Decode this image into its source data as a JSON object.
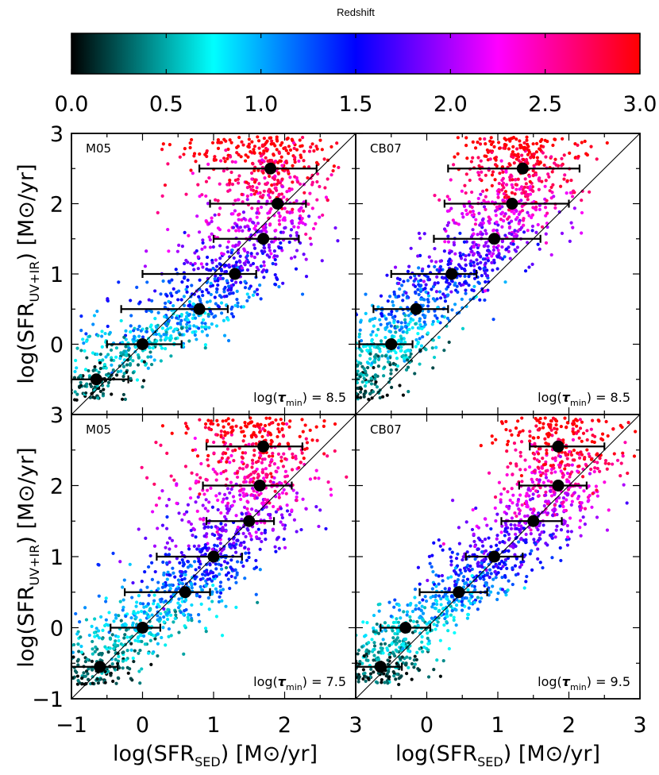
{
  "colorbar": {
    "title": "Redshift",
    "ticks": [
      "0.0",
      "0.5",
      "1.0",
      "1.5",
      "2.0",
      "2.5",
      "3.0"
    ],
    "range": [
      0,
      3
    ],
    "stops": [
      "#000000",
      "#00ffff",
      "#0000ff",
      "#ff00ff",
      "#ff0000"
    ]
  },
  "axes": {
    "xlabel_main": "log(SFR",
    "xlabel_sub": "SED",
    "xlabel_unit": ") [M",
    "xlabel_tail": "/yr]",
    "ylabel_main": "log(SFR",
    "ylabel_sub": "UV+IR",
    "ylabel_unit": ") [M",
    "ylabel_tail": "/yr]",
    "xticks_left": [
      "−1",
      "0",
      "1",
      "2",
      "3"
    ],
    "xticks_right": [
      "0",
      "1",
      "2",
      "3"
    ],
    "yticks_top": [
      "0",
      "1",
      "2",
      "3"
    ],
    "yticks_bottom": [
      "−1",
      "0",
      "1",
      "2",
      "3"
    ],
    "xlim": [
      -1,
      3
    ],
    "ylim": [
      -1,
      3
    ]
  },
  "chart_data": [
    {
      "type": "scatter",
      "panel_label": "M05",
      "annotation_pre": "log(",
      "annotation_tau": "τ",
      "annotation_sub": "min",
      "annotation_value": ") = 8.5",
      "xlim": [
        -1,
        3
      ],
      "ylim": [
        -1,
        3
      ],
      "one_to_one_line": true,
      "binned_points": [
        {
          "x": -0.65,
          "y": -0.5,
          "xlo": -1.0,
          "xhi": -0.2
        },
        {
          "x": 0.0,
          "y": 0.0,
          "xlo": -0.5,
          "xhi": 0.55
        },
        {
          "x": 0.8,
          "y": 0.5,
          "xlo": -0.3,
          "xhi": 1.2
        },
        {
          "x": 1.3,
          "y": 1.0,
          "xlo": 0.0,
          "xhi": 1.6
        },
        {
          "x": 1.7,
          "y": 1.5,
          "xlo": 1.0,
          "xhi": 2.2
        },
        {
          "x": 1.9,
          "y": 2.0,
          "xlo": 0.95,
          "xhi": 2.3
        },
        {
          "x": 1.8,
          "y": 2.5,
          "xlo": 0.8,
          "xhi": 2.45
        }
      ]
    },
    {
      "type": "scatter",
      "panel_label": "CB07",
      "annotation_pre": "log(",
      "annotation_tau": "τ",
      "annotation_sub": "min",
      "annotation_value": ") = 8.5",
      "xlim": [
        -1,
        3
      ],
      "ylim": [
        -1,
        3
      ],
      "one_to_one_line": true,
      "binned_points": [
        {
          "x": -0.5,
          "y": 0.0,
          "xlo": -0.95,
          "xhi": -0.2
        },
        {
          "x": -0.15,
          "y": 0.5,
          "xlo": -0.75,
          "xhi": 0.3
        },
        {
          "x": 0.35,
          "y": 1.0,
          "xlo": -0.5,
          "xhi": 0.7
        },
        {
          "x": 0.95,
          "y": 1.5,
          "xlo": 0.1,
          "xhi": 1.6
        },
        {
          "x": 1.2,
          "y": 2.0,
          "xlo": 0.25,
          "xhi": 2.0
        },
        {
          "x": 1.35,
          "y": 2.5,
          "xlo": 0.3,
          "xhi": 2.15
        }
      ]
    },
    {
      "type": "scatter",
      "panel_label": "M05",
      "annotation_pre": "log(",
      "annotation_tau": "τ",
      "annotation_sub": "min",
      "annotation_value": ") = 7.5",
      "xlim": [
        -1,
        3
      ],
      "ylim": [
        -1,
        3
      ],
      "one_to_one_line": true,
      "binned_points": [
        {
          "x": -0.6,
          "y": -0.55,
          "xlo": -1.0,
          "xhi": -0.35
        },
        {
          "x": 0.0,
          "y": 0.0,
          "xlo": -0.45,
          "xhi": 0.25
        },
        {
          "x": 0.6,
          "y": 0.5,
          "xlo": -0.25,
          "xhi": 0.95
        },
        {
          "x": 1.0,
          "y": 1.0,
          "xlo": 0.2,
          "xhi": 1.4
        },
        {
          "x": 1.5,
          "y": 1.5,
          "xlo": 0.9,
          "xhi": 1.85
        },
        {
          "x": 1.65,
          "y": 2.0,
          "xlo": 0.85,
          "xhi": 2.1
        },
        {
          "x": 1.7,
          "y": 2.55,
          "xlo": 0.9,
          "xhi": 2.25
        }
      ]
    },
    {
      "type": "scatter",
      "panel_label": "CB07",
      "annotation_pre": "log(",
      "annotation_tau": "τ",
      "annotation_sub": "min",
      "annotation_value": ") = 9.5",
      "xlim": [
        -1,
        3
      ],
      "ylim": [
        -1,
        3
      ],
      "one_to_one_line": true,
      "binned_points": [
        {
          "x": -0.65,
          "y": -0.55,
          "xlo": -1.0,
          "xhi": -0.35
        },
        {
          "x": -0.3,
          "y": 0.0,
          "xlo": -0.65,
          "xhi": 0.05
        },
        {
          "x": 0.45,
          "y": 0.5,
          "xlo": -0.1,
          "xhi": 0.85
        },
        {
          "x": 0.95,
          "y": 1.0,
          "xlo": 0.55,
          "xhi": 1.35
        },
        {
          "x": 1.5,
          "y": 1.5,
          "xlo": 1.05,
          "xhi": 1.9
        },
        {
          "x": 1.85,
          "y": 2.0,
          "xlo": 1.3,
          "xhi": 2.25
        },
        {
          "x": 1.85,
          "y": 2.55,
          "xlo": 1.45,
          "xhi": 2.5
        }
      ]
    }
  ]
}
